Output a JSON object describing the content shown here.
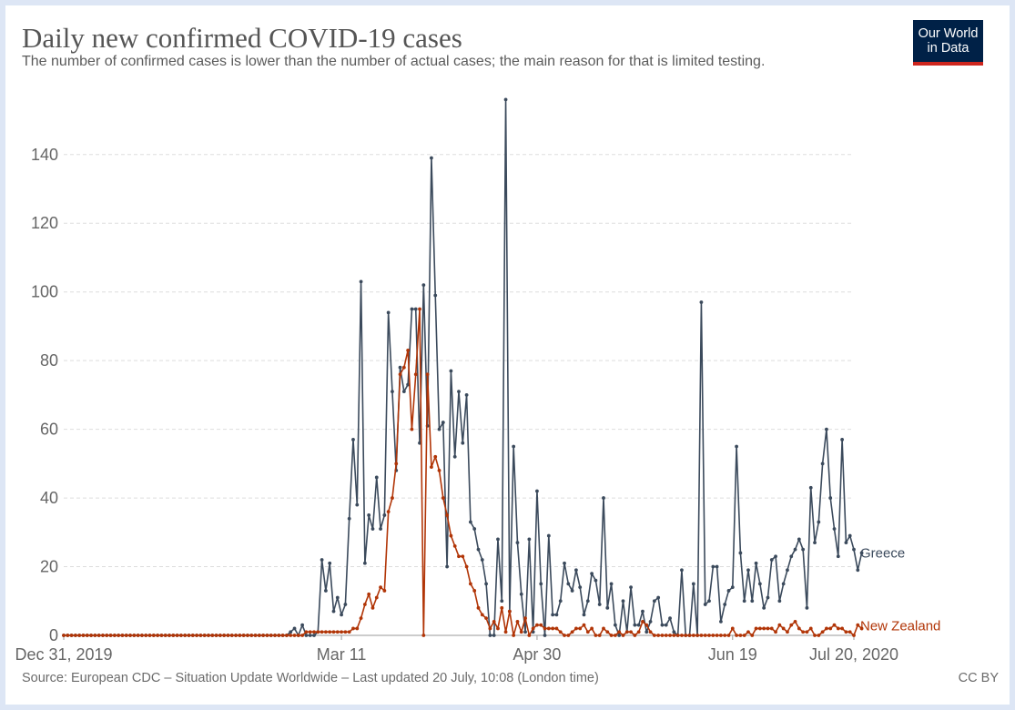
{
  "title": "Daily new confirmed COVID-19 cases",
  "subtitle": "The number of confirmed cases is lower than the number of actual cases; the main reason for that is limited testing.",
  "logo": {
    "line1": "Our World",
    "line2": "in Data"
  },
  "source": "Source: European CDC – Situation Update Worldwide – Last updated 20 July, 10:08 (London time)",
  "license": "CC BY",
  "chart_data": {
    "type": "line",
    "title": "Daily new confirmed COVID-19 cases",
    "start_date": "2019-12-31",
    "end_date": "2020-07-20",
    "ylim": [
      0,
      150
    ],
    "y_ticks": [
      0,
      20,
      40,
      60,
      80,
      100,
      120,
      140
    ],
    "x_tick_labels": [
      "Dec 31, 2019",
      "Mar 11",
      "Apr 30",
      "Jun 19",
      "Jul 20, 2020"
    ],
    "x_tick_dates": [
      "2019-12-31",
      "2020-03-11",
      "2020-04-30",
      "2020-06-19",
      "2020-07-20"
    ],
    "grid": true,
    "legend": "line-end labels",
    "series": [
      {
        "name": "Greece",
        "color": "#3b4a5c",
        "points": [
          [
            "2019-12-31",
            0
          ],
          [
            "2020-02-26",
            0
          ],
          [
            "2020-02-27",
            1
          ],
          [
            "2020-02-28",
            2
          ],
          [
            "2020-02-29",
            0
          ],
          [
            "2020-03-01",
            3
          ],
          [
            "2020-03-02",
            0
          ],
          [
            "2020-03-03",
            0
          ],
          [
            "2020-03-04",
            0
          ],
          [
            "2020-03-05",
            1
          ],
          [
            "2020-03-06",
            22
          ],
          [
            "2020-03-07",
            13
          ],
          [
            "2020-03-08",
            21
          ],
          [
            "2020-03-09",
            7
          ],
          [
            "2020-03-10",
            11
          ],
          [
            "2020-03-11",
            6
          ],
          [
            "2020-03-12",
            9
          ],
          [
            "2020-03-13",
            34
          ],
          [
            "2020-03-14",
            57
          ],
          [
            "2020-03-15",
            38
          ],
          [
            "2020-03-16",
            103
          ],
          [
            "2020-03-17",
            21
          ],
          [
            "2020-03-18",
            35
          ],
          [
            "2020-03-19",
            31
          ],
          [
            "2020-03-20",
            46
          ],
          [
            "2020-03-21",
            31
          ],
          [
            "2020-03-22",
            35
          ],
          [
            "2020-03-23",
            94
          ],
          [
            "2020-03-24",
            71
          ],
          [
            "2020-03-25",
            48
          ],
          [
            "2020-03-26",
            78
          ],
          [
            "2020-03-27",
            71
          ],
          [
            "2020-03-28",
            73
          ],
          [
            "2020-03-29",
            95
          ],
          [
            "2020-03-30",
            95
          ],
          [
            "2020-03-31",
            56
          ],
          [
            "2020-04-01",
            102
          ],
          [
            "2020-04-02",
            61
          ],
          [
            "2020-04-03",
            139
          ],
          [
            "2020-04-04",
            99
          ],
          [
            "2020-04-05",
            60
          ],
          [
            "2020-04-06",
            62
          ],
          [
            "2020-04-07",
            20
          ],
          [
            "2020-04-08",
            77
          ],
          [
            "2020-04-09",
            52
          ],
          [
            "2020-04-10",
            71
          ],
          [
            "2020-04-11",
            56
          ],
          [
            "2020-04-12",
            70
          ],
          [
            "2020-04-13",
            33
          ],
          [
            "2020-04-14",
            31
          ],
          [
            "2020-04-15",
            25
          ],
          [
            "2020-04-16",
            22
          ],
          [
            "2020-04-17",
            15
          ],
          [
            "2020-04-18",
            0
          ],
          [
            "2020-04-19",
            0
          ],
          [
            "2020-04-20",
            28
          ],
          [
            "2020-04-21",
            10
          ],
          [
            "2020-04-22",
            156
          ],
          [
            "2020-04-23",
            7
          ],
          [
            "2020-04-24",
            55
          ],
          [
            "2020-04-25",
            27
          ],
          [
            "2020-04-26",
            12
          ],
          [
            "2020-04-27",
            1
          ],
          [
            "2020-04-28",
            28
          ],
          [
            "2020-04-29",
            1
          ],
          [
            "2020-04-30",
            42
          ],
          [
            "2020-05-01",
            15
          ],
          [
            "2020-05-02",
            0
          ],
          [
            "2020-05-03",
            29
          ],
          [
            "2020-05-04",
            6
          ],
          [
            "2020-05-05",
            6
          ],
          [
            "2020-05-06",
            10
          ],
          [
            "2020-05-07",
            21
          ],
          [
            "2020-05-08",
            15
          ],
          [
            "2020-05-09",
            13
          ],
          [
            "2020-05-10",
            19
          ],
          [
            "2020-05-11",
            14
          ],
          [
            "2020-05-12",
            6
          ],
          [
            "2020-05-13",
            10
          ],
          [
            "2020-05-14",
            18
          ],
          [
            "2020-05-15",
            16
          ],
          [
            "2020-05-16",
            9
          ],
          [
            "2020-05-17",
            40
          ],
          [
            "2020-05-18",
            8
          ],
          [
            "2020-05-19",
            15
          ],
          [
            "2020-05-20",
            3
          ],
          [
            "2020-05-21",
            0
          ],
          [
            "2020-05-22",
            10
          ],
          [
            "2020-05-23",
            1
          ],
          [
            "2020-05-24",
            14
          ],
          [
            "2020-05-25",
            3
          ],
          [
            "2020-05-26",
            3
          ],
          [
            "2020-05-27",
            7
          ],
          [
            "2020-05-28",
            1
          ],
          [
            "2020-05-29",
            4
          ],
          [
            "2020-05-30",
            10
          ],
          [
            "2020-05-31",
            11
          ],
          [
            "2020-06-01",
            3
          ],
          [
            "2020-06-02",
            3
          ],
          [
            "2020-06-03",
            5
          ],
          [
            "2020-06-04",
            1
          ],
          [
            "2020-06-05",
            0
          ],
          [
            "2020-06-06",
            19
          ],
          [
            "2020-06-07",
            0
          ],
          [
            "2020-06-08",
            0
          ],
          [
            "2020-06-09",
            15
          ],
          [
            "2020-06-10",
            0
          ],
          [
            "2020-06-11",
            97
          ],
          [
            "2020-06-12",
            9
          ],
          [
            "2020-06-13",
            10
          ],
          [
            "2020-06-14",
            20
          ],
          [
            "2020-06-15",
            20
          ],
          [
            "2020-06-16",
            4
          ],
          [
            "2020-06-17",
            9
          ],
          [
            "2020-06-18",
            13
          ],
          [
            "2020-06-19",
            14
          ],
          [
            "2020-06-20",
            55
          ],
          [
            "2020-06-21",
            24
          ],
          [
            "2020-06-22",
            10
          ],
          [
            "2020-06-23",
            19
          ],
          [
            "2020-06-24",
            10
          ],
          [
            "2020-06-25",
            21
          ],
          [
            "2020-06-26",
            15
          ],
          [
            "2020-06-27",
            8
          ],
          [
            "2020-06-28",
            11
          ],
          [
            "2020-06-29",
            22
          ],
          [
            "2020-06-30",
            23
          ],
          [
            "2020-07-01",
            10
          ],
          [
            "2020-07-02",
            15
          ],
          [
            "2020-07-03",
            19
          ],
          [
            "2020-07-04",
            23
          ],
          [
            "2020-07-05",
            25
          ],
          [
            "2020-07-06",
            28
          ],
          [
            "2020-07-07",
            25
          ],
          [
            "2020-07-08",
            8
          ],
          [
            "2020-07-09",
            43
          ],
          [
            "2020-07-10",
            27
          ],
          [
            "2020-07-11",
            33
          ],
          [
            "2020-07-12",
            50
          ],
          [
            "2020-07-13",
            60
          ],
          [
            "2020-07-14",
            40
          ],
          [
            "2020-07-15",
            31
          ],
          [
            "2020-07-16",
            23
          ],
          [
            "2020-07-17",
            57
          ],
          [
            "2020-07-18",
            27
          ],
          [
            "2020-07-19",
            29
          ],
          [
            "2020-07-20",
            25
          ],
          [
            "2020-07-21",
            19
          ],
          [
            "2020-07-22",
            24
          ]
        ]
      },
      {
        "name": "New Zealand",
        "color": "#b13507",
        "points": [
          [
            "2019-12-31",
            0
          ],
          [
            "2020-02-28",
            0
          ],
          [
            "2020-03-05",
            1
          ],
          [
            "2020-03-09",
            1
          ],
          [
            "2020-03-13",
            1
          ],
          [
            "2020-03-15",
            2
          ],
          [
            "2020-03-18",
            12
          ],
          [
            "2020-03-19",
            8
          ],
          [
            "2020-03-20",
            11
          ],
          [
            "2020-03-21",
            14
          ],
          [
            "2020-03-22",
            13
          ],
          [
            "2020-03-23",
            36
          ],
          [
            "2020-03-24",
            40
          ],
          [
            "2020-03-25",
            50
          ],
          [
            "2020-03-26",
            76
          ],
          [
            "2020-03-27",
            78
          ],
          [
            "2020-03-28",
            83
          ],
          [
            "2020-03-29",
            60
          ],
          [
            "2020-03-30",
            76
          ],
          [
            "2020-03-31",
            95
          ],
          [
            "2020-04-01",
            0
          ],
          [
            "2020-04-02",
            76
          ],
          [
            "2020-04-03",
            49
          ],
          [
            "2020-04-04",
            52
          ],
          [
            "2020-04-05",
            48
          ],
          [
            "2020-04-06",
            40
          ],
          [
            "2020-04-07",
            35
          ],
          [
            "2020-04-08",
            29
          ],
          [
            "2020-04-09",
            26
          ],
          [
            "2020-04-10",
            23
          ],
          [
            "2020-04-11",
            23
          ],
          [
            "2020-04-12",
            20
          ],
          [
            "2020-04-13",
            15
          ],
          [
            "2020-04-14",
            13
          ],
          [
            "2020-04-15",
            8
          ],
          [
            "2020-04-16",
            6
          ],
          [
            "2020-04-17",
            5
          ],
          [
            "2020-04-18",
            2
          ],
          [
            "2020-04-19",
            4
          ],
          [
            "2020-04-20",
            2
          ],
          [
            "2020-04-21",
            8
          ],
          [
            "2020-04-22",
            1
          ],
          [
            "2020-04-23",
            7
          ],
          [
            "2020-04-24",
            0
          ],
          [
            "2020-04-25",
            4
          ],
          [
            "2020-04-26",
            1
          ],
          [
            "2020-04-27",
            5
          ],
          [
            "2020-04-28",
            0
          ],
          [
            "2020-04-29",
            2
          ],
          [
            "2020-04-30",
            3
          ],
          [
            "2020-05-01",
            3
          ],
          [
            "2020-05-02",
            2
          ],
          [
            "2020-05-03",
            2
          ],
          [
            "2020-05-04",
            2
          ],
          [
            "2020-05-05",
            2
          ],
          [
            "2020-05-06",
            1
          ],
          [
            "2020-05-07",
            0
          ],
          [
            "2020-05-08",
            0
          ],
          [
            "2020-05-09",
            1
          ],
          [
            "2020-05-10",
            2
          ],
          [
            "2020-05-11",
            2
          ],
          [
            "2020-05-12",
            3
          ],
          [
            "2020-05-13",
            1
          ],
          [
            "2020-05-14",
            2
          ],
          [
            "2020-05-15",
            0
          ],
          [
            "2020-05-16",
            0
          ],
          [
            "2020-05-17",
            2
          ],
          [
            "2020-05-18",
            1
          ],
          [
            "2020-05-19",
            0
          ],
          [
            "2020-05-20",
            0
          ],
          [
            "2020-05-21",
            1
          ],
          [
            "2020-05-22",
            0
          ],
          [
            "2020-05-23",
            1
          ],
          [
            "2020-05-24",
            1
          ],
          [
            "2020-05-25",
            0
          ],
          [
            "2020-05-26",
            1
          ],
          [
            "2020-05-27",
            4
          ],
          [
            "2020-05-28",
            3
          ],
          [
            "2020-05-29",
            1
          ],
          [
            "2020-05-30",
            0
          ],
          [
            "2020-06-18",
            0
          ],
          [
            "2020-06-19",
            2
          ],
          [
            "2020-06-20",
            0
          ],
          [
            "2020-06-21",
            0
          ],
          [
            "2020-06-22",
            0
          ],
          [
            "2020-06-23",
            1
          ],
          [
            "2020-06-24",
            0
          ],
          [
            "2020-06-25",
            2
          ],
          [
            "2020-06-26",
            2
          ],
          [
            "2020-06-27",
            2
          ],
          [
            "2020-06-28",
            2
          ],
          [
            "2020-06-29",
            2
          ],
          [
            "2020-06-30",
            1
          ],
          [
            "2020-07-01",
            3
          ],
          [
            "2020-07-02",
            2
          ],
          [
            "2020-07-03",
            1
          ],
          [
            "2020-07-04",
            3
          ],
          [
            "2020-07-05",
            4
          ],
          [
            "2020-07-06",
            2
          ],
          [
            "2020-07-07",
            1
          ],
          [
            "2020-07-08",
            1
          ],
          [
            "2020-07-09",
            2
          ],
          [
            "2020-07-10",
            0
          ],
          [
            "2020-07-11",
            0
          ],
          [
            "2020-07-12",
            1
          ],
          [
            "2020-07-13",
            2
          ],
          [
            "2020-07-14",
            2
          ],
          [
            "2020-07-15",
            3
          ],
          [
            "2020-07-16",
            2
          ],
          [
            "2020-07-17",
            2
          ],
          [
            "2020-07-18",
            1
          ],
          [
            "2020-07-19",
            1
          ],
          [
            "2020-07-20",
            0
          ],
          [
            "2020-07-21",
            3
          ],
          [
            "2020-07-22",
            2
          ]
        ]
      }
    ]
  }
}
